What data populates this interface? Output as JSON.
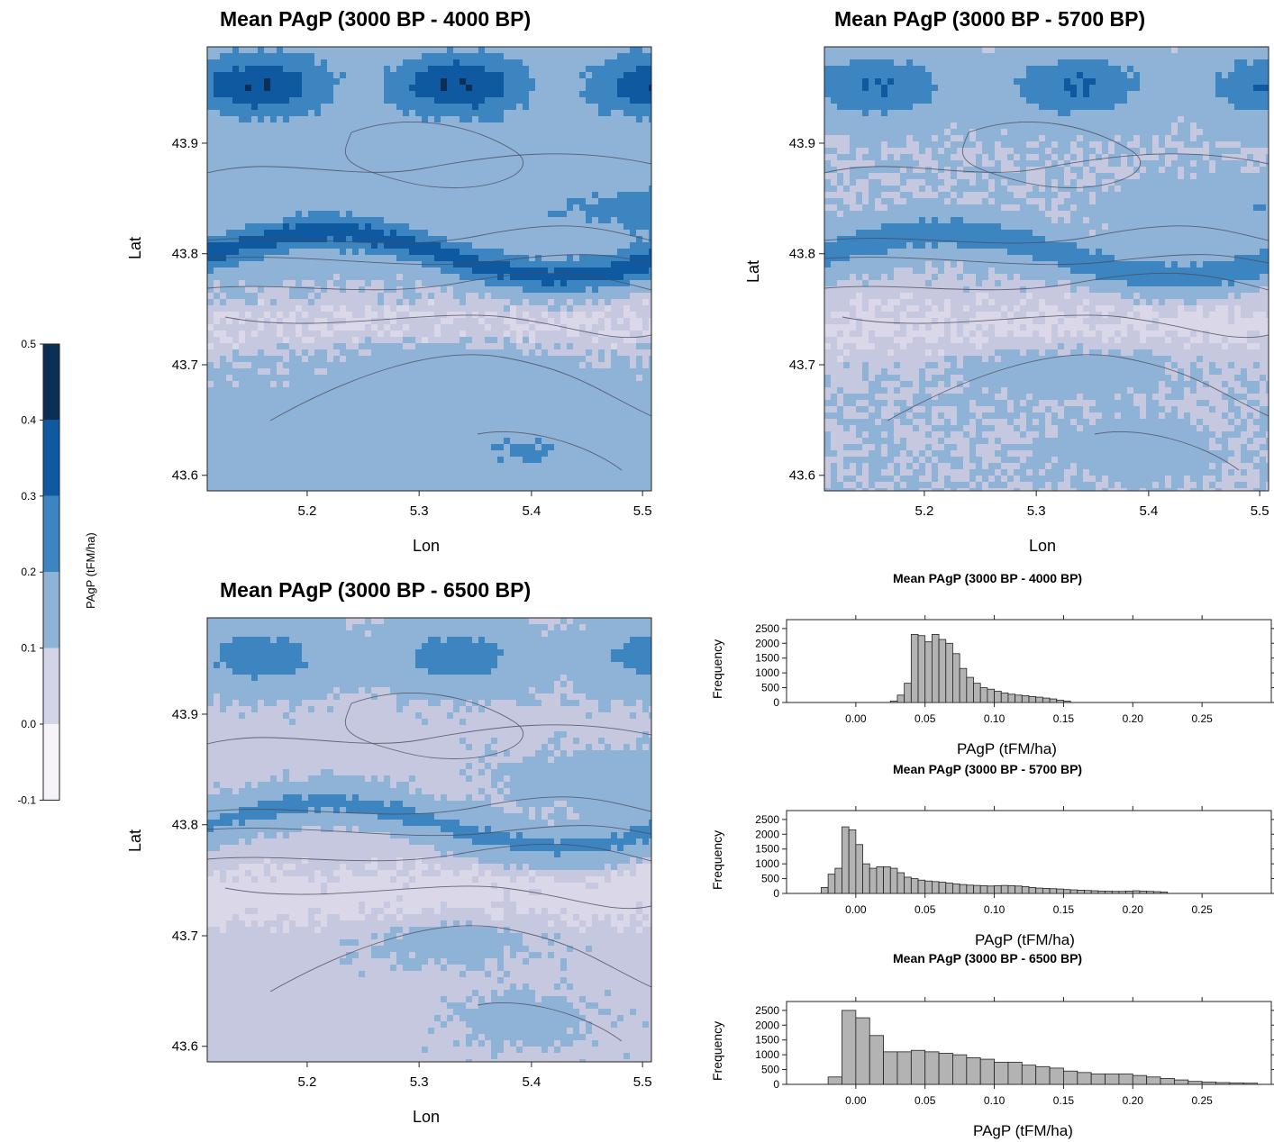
{
  "colors": {
    "legend": [
      "#f7f4f9",
      "#d4d4e8",
      "#8fb3d6",
      "#3c85c1",
      "#0f59a0",
      "#0b2f55"
    ],
    "hist_bar": "#b3b3b3"
  },
  "legend": {
    "title": "PAgP (tFM/ha)",
    "ticks": [
      "0.5",
      "0.4",
      "0.3",
      "0.2",
      "0.1",
      "0.0",
      "-0.1"
    ],
    "values": [
      0.5,
      0.4,
      0.3,
      0.2,
      0.1,
      0.0,
      -0.1
    ]
  },
  "maps": [
    {
      "title": "Mean PAgP (3000 BP - 4000 BP)",
      "xlabel": "Lon",
      "ylabel": "Lat",
      "xticks": [
        "5.2",
        "5.3",
        "5.4",
        "5.5"
      ],
      "yticks": [
        "43.9",
        "43.8",
        "43.7",
        "43.6"
      ],
      "intensity": 1.0
    },
    {
      "title": "Mean PAgP (3000 BP - 5700 BP)",
      "xlabel": "Lon",
      "ylabel": "Lat",
      "xticks": [
        "5.2",
        "5.3",
        "5.4",
        "5.5"
      ],
      "yticks": [
        "43.9",
        "43.8",
        "43.7",
        "43.6"
      ],
      "intensity": 0.75
    },
    {
      "title": "Mean PAgP (3000 BP - 6500 BP)",
      "xlabel": "Lon",
      "ylabel": "Lat",
      "xticks": [
        "5.2",
        "5.3",
        "5.4",
        "5.5"
      ],
      "yticks": [
        "43.9",
        "43.8",
        "43.7",
        "43.6"
      ],
      "intensity": 0.6
    }
  ],
  "chart_data": [
    {
      "type": "bar",
      "title": "Mean PAgP (3000 BP - 4000 BP)",
      "xlabel": "PAgP (tFM/ha)",
      "ylabel": "Frequency",
      "xlim": [
        -0.05,
        0.3
      ],
      "ylim": [
        0,
        2800
      ],
      "xticks": [
        "0.00",
        "0.05",
        "0.10",
        "0.15",
        "0.20",
        "0.25"
      ],
      "yticks": [
        "0",
        "500",
        "1000",
        "1500",
        "2000",
        "2500"
      ],
      "bin_start": 0.025,
      "bin_width": 0.005,
      "values": [
        50,
        250,
        650,
        2300,
        2260,
        2050,
        2300,
        2130,
        2000,
        1650,
        1150,
        850,
        650,
        500,
        450,
        380,
        320,
        280,
        250,
        230,
        200,
        180,
        150,
        120,
        80,
        50
      ],
      "baseline_range": [
        -0.03,
        0.28
      ]
    },
    {
      "type": "bar",
      "title": "Mean PAgP (3000 BP - 5700 BP)",
      "xlabel": "PAgP (tFM/ha)",
      "ylabel": "Frequency",
      "xlim": [
        -0.05,
        0.3
      ],
      "ylim": [
        0,
        2800
      ],
      "xticks": [
        "0.00",
        "0.05",
        "0.10",
        "0.15",
        "0.20",
        "0.25"
      ],
      "yticks": [
        "0",
        "500",
        "1000",
        "1500",
        "2000",
        "2500"
      ],
      "bin_start": -0.025,
      "bin_width": 0.005,
      "values": [
        200,
        650,
        850,
        2250,
        2150,
        1650,
        1000,
        850,
        900,
        900,
        850,
        700,
        550,
        500,
        450,
        420,
        400,
        380,
        350,
        320,
        300,
        280,
        270,
        260,
        250,
        260,
        270,
        260,
        250,
        230,
        200,
        180,
        170,
        160,
        150,
        130,
        120,
        110,
        100,
        90,
        80,
        75,
        70,
        70,
        80,
        90,
        80,
        70,
        60,
        50
      ],
      "baseline_range": [
        -0.03,
        0.28
      ]
    },
    {
      "type": "bar",
      "title": "Mean PAgP (3000 BP - 6500 BP)",
      "xlabel": "PAgP (tFM/ha)",
      "ylabel": "Frequency",
      "xlim": [
        -0.05,
        0.3
      ],
      "ylim": [
        0,
        2800
      ],
      "xticks": [
        "0.00",
        "0.05",
        "0.10",
        "0.15",
        "0.20",
        "0.25"
      ],
      "yticks": [
        "0",
        "500",
        "1000",
        "1500",
        "2000",
        "2500"
      ],
      "bin_start": -0.02,
      "bin_width": 0.01,
      "values": [
        250,
        2500,
        2250,
        1650,
        1100,
        1100,
        1150,
        1100,
        1050,
        1000,
        900,
        850,
        750,
        750,
        650,
        600,
        550,
        450,
        400,
        350,
        350,
        350,
        300,
        250,
        200,
        150,
        100,
        80,
        60,
        50,
        40
      ],
      "baseline_range": [
        -0.03,
        0.3
      ]
    }
  ]
}
